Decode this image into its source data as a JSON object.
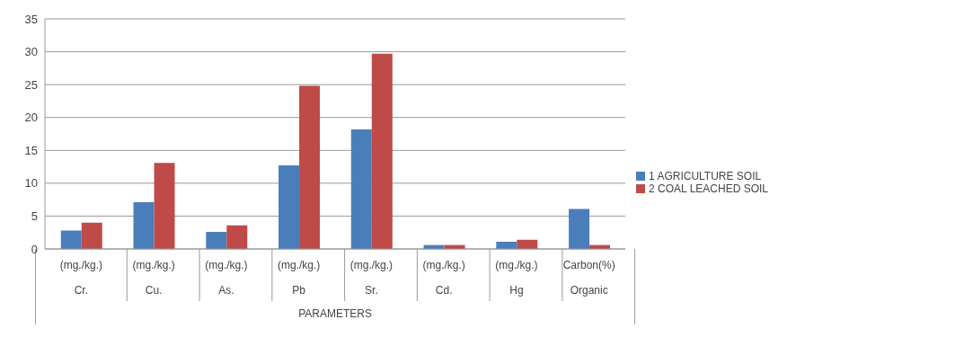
{
  "chart_data": {
    "type": "bar",
    "xlabel": "PARAMETERS",
    "categories": [
      "(mg./kg.)\nCr.",
      "(mg./kg.)\nCu.",
      "(mg./kg.)\nAs.",
      "(mg./kg.)\nPb",
      "(mg./kg.)\nSr.",
      "(mg./kg.)\nCd.",
      "(mg./kg.)\nHg",
      "Carbon(%)\nOrganic"
    ],
    "series": [
      {
        "name": "1 AGRICULTURE SOIL",
        "color": "#4a7ebb",
        "values": [
          2.8,
          7.1,
          2.6,
          12.7,
          18.2,
          0.6,
          1.1,
          6.1
        ]
      },
      {
        "name": "2 COAL LEACHED SOIL",
        "color": "#be4b48",
        "values": [
          4.0,
          13.1,
          3.6,
          24.8,
          29.7,
          0.6,
          1.4,
          0.6
        ]
      }
    ],
    "ylim": [
      0,
      35
    ],
    "yticks": [
      0,
      5,
      10,
      15,
      20,
      25,
      30,
      35
    ],
    "grid": "y",
    "legend": "right"
  }
}
